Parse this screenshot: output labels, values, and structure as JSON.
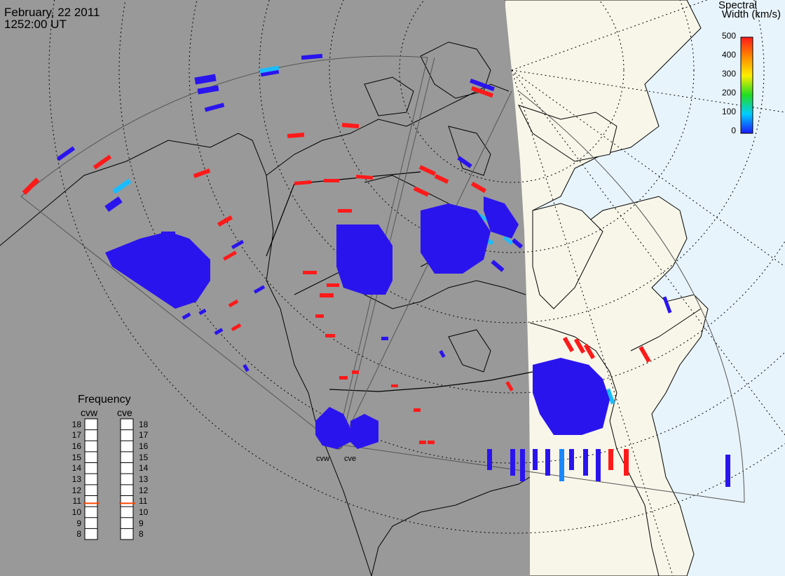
{
  "header": {
    "date": "February, 22 2011",
    "time": "1252:00 UT"
  },
  "colorbar": {
    "title_line1": "Spectral",
    "title_line2": "Width (km/s)",
    "ticks": [
      "500",
      "400",
      "300",
      "200",
      "100",
      "0"
    ],
    "range": [
      0,
      500
    ],
    "colors": [
      "#1a1aff",
      "#00ccff",
      "#00dd66",
      "#22dd22",
      "#ffee00",
      "#ff8800",
      "#ff1a1a"
    ]
  },
  "frequency_panel": {
    "title": "Frequency",
    "radars": [
      {
        "name": "cvw",
        "value": 10.8
      },
      {
        "name": "cve",
        "value": 10.8
      }
    ],
    "scale": [
      "18",
      "17",
      "16",
      "15",
      "14",
      "13",
      "12",
      "11",
      "10",
      "9",
      "8"
    ],
    "marker_color": "#ff4400"
  },
  "radar_sites": [
    {
      "name": "cvw"
    },
    {
      "name": "cve"
    }
  ],
  "map": {
    "night_color": "#999999",
    "day_land_color": "#f7f6e9",
    "day_ocean_color": "#e8f4fb",
    "coast_color": "#000000",
    "fov_color": "#555555",
    "low_width_color": "#2a14ee",
    "high_width_color": "#ff1a1a",
    "mid_width_color": "#1abcff"
  }
}
